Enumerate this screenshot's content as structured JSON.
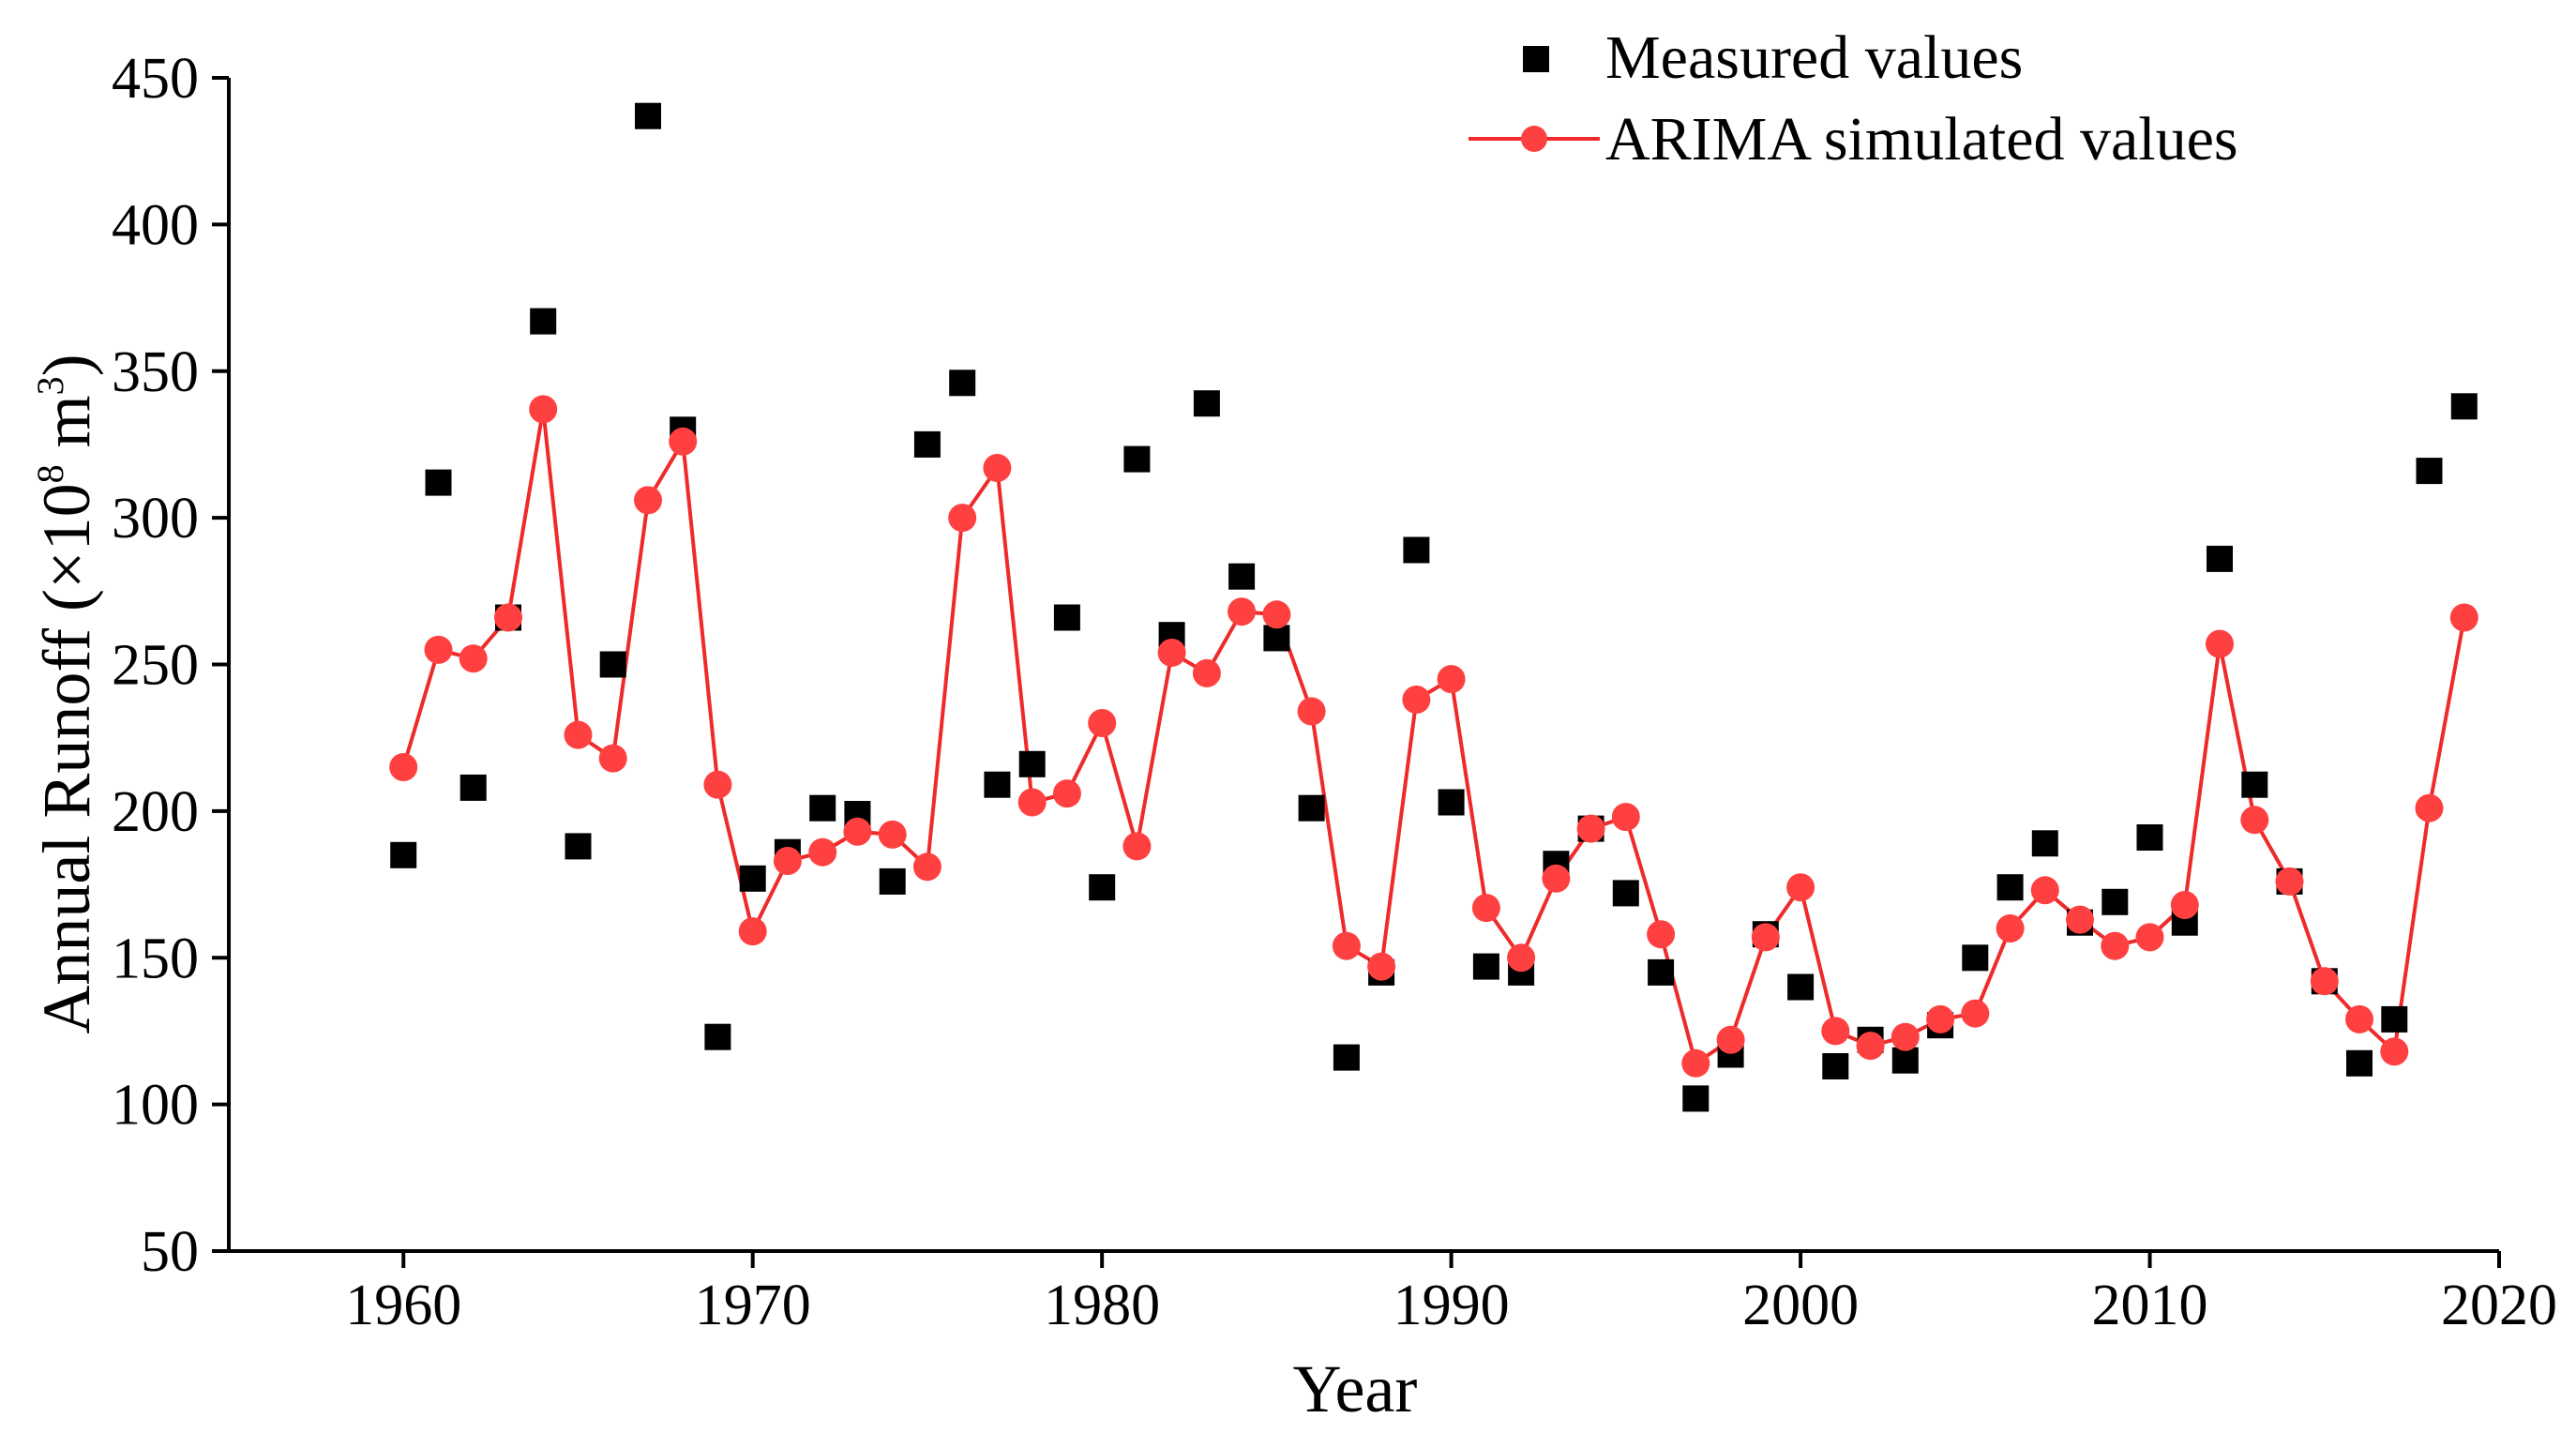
{
  "chart_data": {
    "type": "scatter+line",
    "title": "",
    "xlabel": "Year",
    "ylabel": {
      "prefix": "Annual Runoff (×10",
      "exp1": "8",
      "mid": " m",
      "exp2": "3",
      "suffix": ")"
    },
    "xlim": [
      1955,
      2020
    ],
    "ylim": [
      50,
      450
    ],
    "xticks": [
      "1960",
      "1970",
      "1980",
      "1990",
      "2000",
      "2010",
      "2020"
    ],
    "yticks": [
      "50",
      "100",
      "150",
      "200",
      "250",
      "300",
      "350",
      "400",
      "450"
    ],
    "legend": [
      "Measured values",
      "ARIMA simulated values"
    ],
    "colors": {
      "measured": "#000000",
      "arima": "#ff4040",
      "arima_line": "#ee2a2a"
    },
    "x": [
      1960,
      1961,
      1962,
      1963,
      1964,
      1965,
      1966,
      1967,
      1968,
      1969,
      1970,
      1971,
      1972,
      1973,
      1974,
      1975,
      1976,
      1977,
      1978,
      1979,
      1980,
      1981,
      1982,
      1983,
      1984,
      1985,
      1986,
      1987,
      1988,
      1989,
      1990,
      1991,
      1992,
      1993,
      1994,
      1995,
      1996,
      1997,
      1998,
      1999,
      2000,
      2001,
      2002,
      2003,
      2004,
      2005,
      2006,
      2007,
      2008,
      2009,
      2010,
      2011,
      2012,
      2013,
      2014,
      2015,
      2016,
      2017,
      2018,
      2019
    ],
    "series": [
      {
        "name": "Measured values",
        "values": [
          185,
          312,
          208,
          266,
          367,
          188,
          250,
          437,
          330,
          123,
          177,
          186,
          201,
          199,
          176,
          325,
          346,
          209,
          216,
          266,
          174,
          320,
          260,
          339,
          280,
          259,
          201,
          116,
          145,
          289,
          203,
          147,
          145,
          182,
          194,
          172,
          145,
          102,
          117,
          158,
          140,
          113,
          122,
          115,
          127,
          150,
          174,
          189,
          162,
          169,
          191,
          162,
          286,
          209,
          176,
          142,
          114,
          129,
          316,
          338
        ]
      },
      {
        "name": "ARIMA simulated values",
        "values": [
          215,
          255,
          252,
          266,
          337,
          226,
          218,
          306,
          326,
          209,
          159,
          183,
          186,
          193,
          192,
          181,
          300,
          317,
          203,
          206,
          230,
          188,
          254,
          247,
          268,
          267,
          234,
          154,
          147,
          238,
          245,
          167,
          150,
          177,
          194,
          198,
          158,
          114,
          122,
          157,
          174,
          125,
          120,
          123,
          129,
          131,
          160,
          173,
          163,
          154,
          157,
          168,
          257,
          197,
          176,
          142,
          129,
          118,
          201,
          266
        ]
      }
    ]
  }
}
